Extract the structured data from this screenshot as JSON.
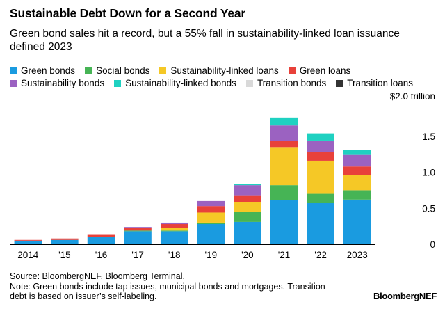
{
  "title": "Sustainable Debt Down for a Second Year",
  "subtitle": "Green bond sales hit a record, but a 55% fall in sustainability-linked loan issuance defined 2023",
  "source": "Source: BloombergNEF, Bloomberg Terminal.",
  "note": "Note: Green bonds include tap issues, municipal bonds and mortgages. Transition debt is based on issuer’s self-labeling.",
  "brand": "BloombergNEF",
  "chart_data": {
    "type": "bar",
    "stacked": true,
    "categories": [
      "2014",
      "'15",
      "'16",
      "'17",
      "'18",
      "'19",
      "'20",
      "'21",
      "'22",
      "2023"
    ],
    "y_tick_labels": [
      "$2.0 trillion",
      "1.5",
      "1.0",
      "0.5",
      "0"
    ],
    "y_ticks": [
      2.0,
      1.5,
      1.0,
      0.5,
      0
    ],
    "ylim": [
      0,
      2.0
    ],
    "y_axis_side": "right",
    "legend_position": "top",
    "series": [
      {
        "name": "Green bonds",
        "color": "#1a9be0",
        "values": [
          0.05,
          0.06,
          0.1,
          0.18,
          0.18,
          0.28,
          0.31,
          0.61,
          0.57,
          0.62
        ]
      },
      {
        "name": "Social bonds",
        "color": "#46b455",
        "values": [
          0.0,
          0.0,
          0.0,
          0.01,
          0.01,
          0.02,
          0.14,
          0.21,
          0.13,
          0.13
        ]
      },
      {
        "name": "Sustainability-linked loans",
        "color": "#f5c826",
        "values": [
          0.0,
          0.0,
          0.0,
          0.0,
          0.04,
          0.14,
          0.13,
          0.52,
          0.46,
          0.21
        ]
      },
      {
        "name": "Green loans",
        "color": "#e8413a",
        "values": [
          0.01,
          0.02,
          0.03,
          0.04,
          0.05,
          0.09,
          0.1,
          0.09,
          0.12,
          0.12
        ]
      },
      {
        "name": "Sustainability bonds",
        "color": "#9b62c1",
        "values": [
          0.0,
          0.0,
          0.0,
          0.01,
          0.02,
          0.07,
          0.14,
          0.22,
          0.16,
          0.16
        ]
      },
      {
        "name": "Sustainability-linked bonds",
        "color": "#1fd1c1",
        "values": [
          0.0,
          0.0,
          0.0,
          0.0,
          0.0,
          0.0,
          0.02,
          0.11,
          0.1,
          0.07
        ]
      },
      {
        "name": "Transition bonds",
        "color": "#d9d9d9",
        "values": [
          0,
          0,
          0,
          0,
          0,
          0,
          0,
          0,
          0,
          0
        ]
      },
      {
        "name": "Transition loans",
        "color": "#333333",
        "values": [
          0,
          0,
          0,
          0,
          0,
          0,
          0,
          0,
          0,
          0
        ]
      }
    ]
  }
}
